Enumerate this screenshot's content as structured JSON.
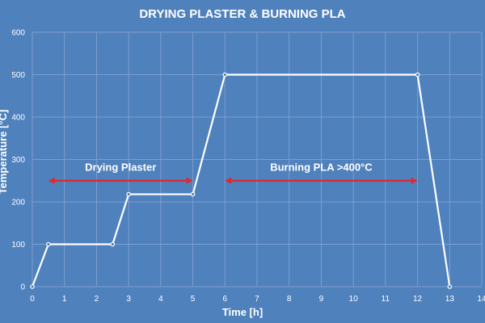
{
  "colors": {
    "background": "#4f81bd",
    "gridline": "#7d9fcf",
    "line": "#ffffff",
    "arrow": "#e3262b",
    "text": "#ffffff"
  },
  "chart_data": {
    "type": "line",
    "title": "DRYING PLASTER & BURNING PLA",
    "xlabel": "Time [h]",
    "ylabel": "Temperature [°C]",
    "xlim": [
      0,
      14
    ],
    "ylim": [
      0,
      600
    ],
    "xticks": [
      0,
      1,
      2,
      3,
      4,
      5,
      6,
      7,
      8,
      9,
      10,
      11,
      12,
      13,
      14
    ],
    "yticks": [
      0,
      100,
      200,
      300,
      400,
      500,
      600
    ],
    "grid": true,
    "legend": "none",
    "series": [
      {
        "x": [
          0,
          0.5,
          2.5,
          3,
          5,
          6,
          12,
          13
        ],
        "y": [
          0,
          100,
          100,
          218,
          218,
          500,
          500,
          0
        ]
      }
    ],
    "annotations": [
      {
        "text": "Drying Plaster",
        "x_start": 0.5,
        "x_end": 5,
        "y": 250,
        "label_y": 273
      },
      {
        "text": "Burning PLA >400°C",
        "x_start": 6,
        "x_end": 12,
        "y": 250,
        "label_y": 273
      }
    ]
  }
}
